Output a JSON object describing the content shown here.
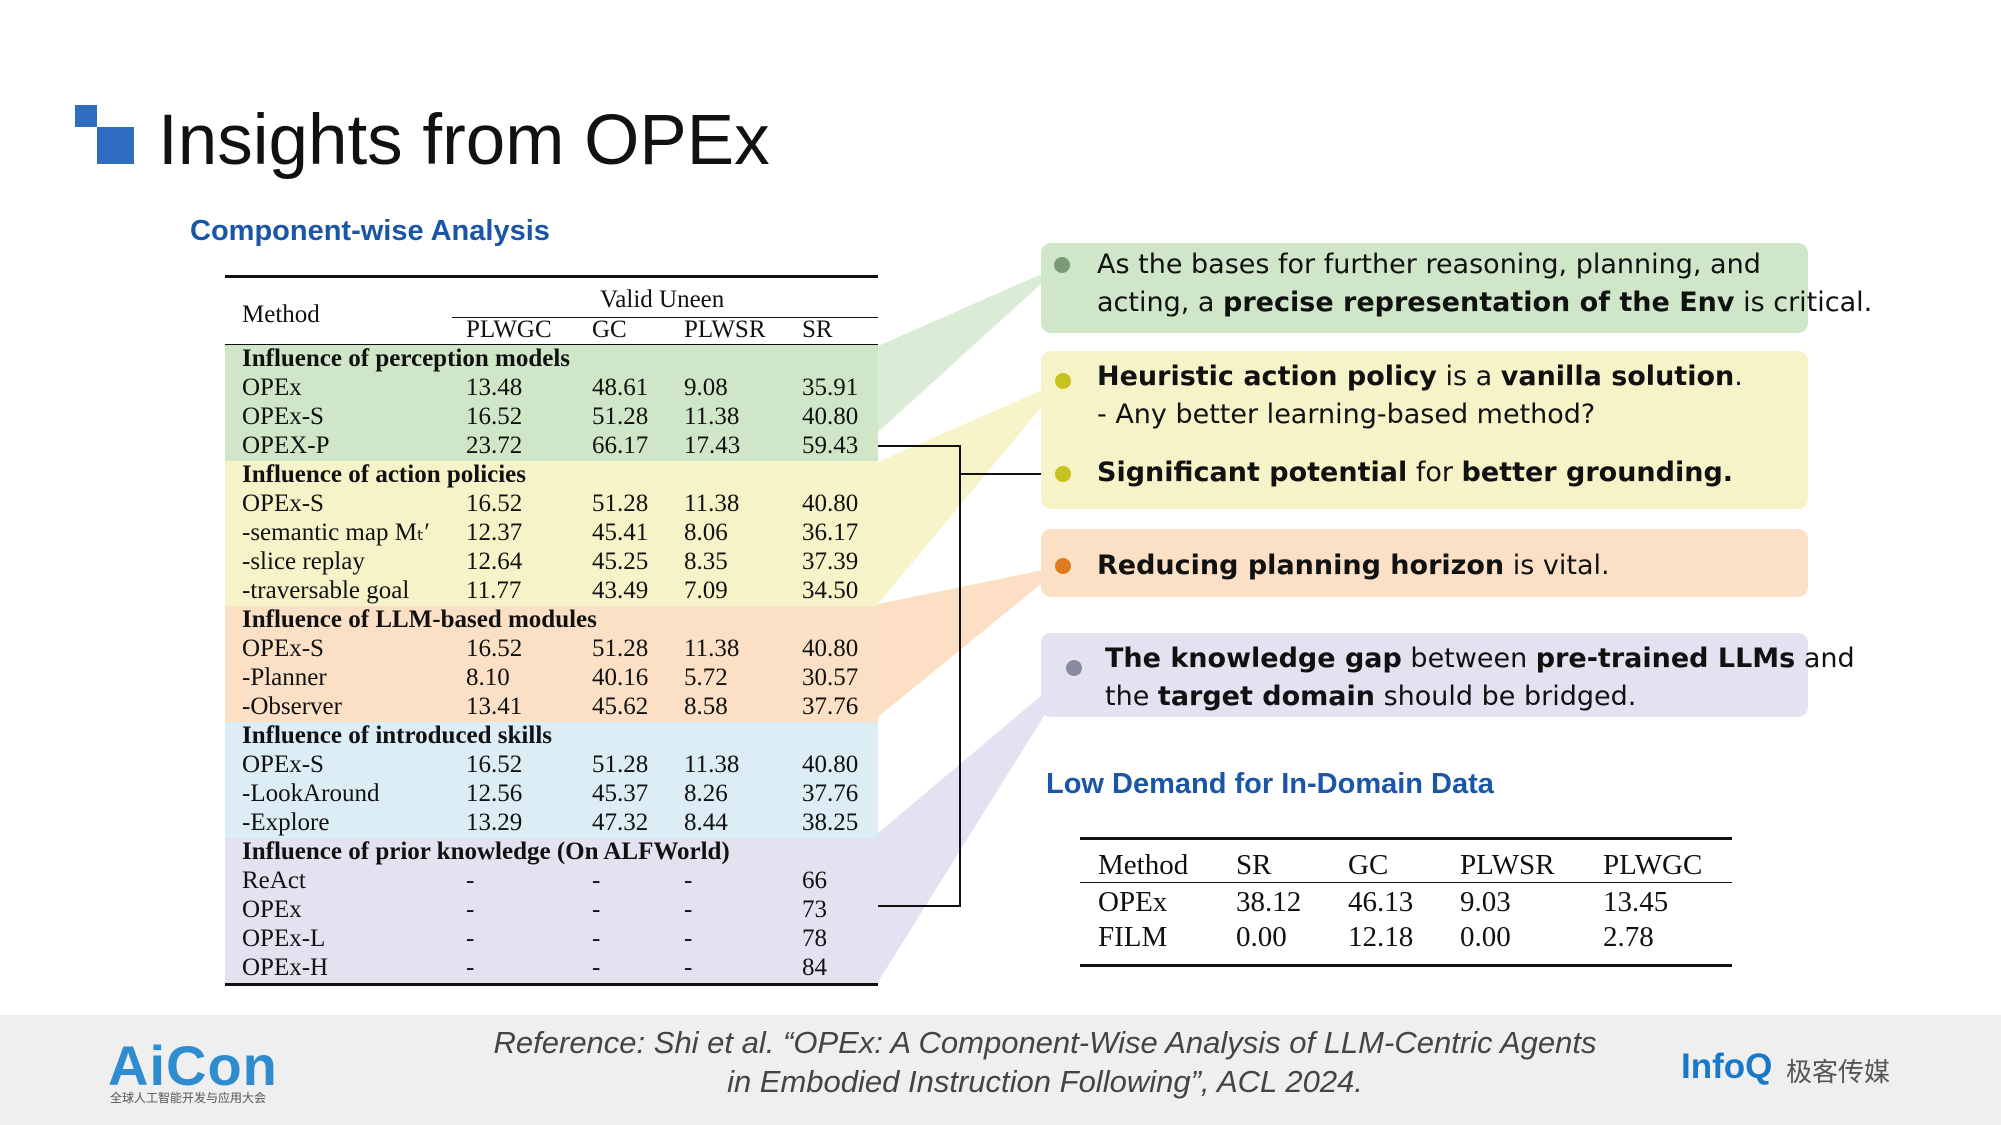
{
  "title": "Insights from OPEx",
  "section_left": "Component-wise Analysis",
  "section_right": "Low Demand for In-Domain Data",
  "main_table": {
    "method_header": "Method",
    "group_header": "Valid Uneen",
    "columns": [
      "PLWGC",
      "GC",
      "PLWSR",
      "SR"
    ],
    "groups": [
      {
        "name": "Influence of perception models",
        "color": "#cfe6c8",
        "rows": [
          [
            "OPEx",
            "13.48",
            "48.61",
            "9.08",
            "35.91"
          ],
          [
            "OPEx-S",
            "16.52",
            "51.28",
            "11.38",
            "40.80"
          ],
          [
            "OPEX-P",
            "23.72",
            "66.17",
            "17.43",
            "59.43"
          ]
        ]
      },
      {
        "name": "Influence of action policies",
        "color": "#f7f3c9",
        "rows": [
          [
            "OPEx-S",
            "16.52",
            "51.28",
            "11.38",
            "40.80"
          ],
          [
            "-semantic map Mₜ′",
            "12.37",
            "45.41",
            "8.06",
            "36.17"
          ],
          [
            "-slice replay",
            "12.64",
            "45.25",
            "8.35",
            "37.39"
          ],
          [
            "-traversable goal",
            "11.77",
            "43.49",
            "7.09",
            "34.50"
          ]
        ]
      },
      {
        "name": "Influence of LLM-based modules",
        "color": "#fbe0c6",
        "rows": [
          [
            "OPEx-S",
            "16.52",
            "51.28",
            "11.38",
            "40.80"
          ],
          [
            "-Planner",
            "8.10",
            "40.16",
            "5.72",
            "30.57"
          ],
          [
            "-Observer",
            "13.41",
            "45.62",
            "8.58",
            "37.76"
          ]
        ]
      },
      {
        "name": "Influence of introduced skills",
        "color": "#dcedf6",
        "rows": [
          [
            "OPEx-S",
            "16.52",
            "51.28",
            "11.38",
            "40.80"
          ],
          [
            "-LookAround",
            "12.56",
            "45.37",
            "8.26",
            "37.76"
          ],
          [
            "-Explore",
            "13.29",
            "47.32",
            "8.44",
            "38.25"
          ]
        ]
      },
      {
        "name": "Influence of prior knowledge (On ALFWorld)",
        "color": "#e2e2f1",
        "rows": [
          [
            "ReAct",
            "-",
            "-",
            "-",
            "66"
          ],
          [
            "OPEx",
            "-",
            "-",
            "-",
            "73"
          ],
          [
            "OPEx-L",
            "-",
            "-",
            "-",
            "78"
          ],
          [
            "OPEx-H",
            "-",
            "-",
            "-",
            "84"
          ]
        ]
      }
    ]
  },
  "callouts": [
    {
      "color": "#cfe6c8",
      "dot": "#7a9a78",
      "lines": [
        [
          [
            "As the bases for further reasoning, planning, and",
            false
          ]
        ],
        [
          [
            "acting, a ",
            false
          ],
          [
            "precise representation of the Env",
            true
          ],
          [
            " is critical.",
            false
          ]
        ]
      ]
    },
    {
      "color": "#f7f3c9",
      "dot": "#c8c21e",
      "lines": [
        [
          [
            "Heuristic action policy",
            true
          ],
          [
            " is a ",
            false
          ],
          [
            "vanilla solution",
            true
          ],
          [
            ".",
            false
          ]
        ],
        [
          [
            "- Any better learning-based method?",
            false
          ]
        ],
        [
          [
            "Significant potential",
            true
          ],
          [
            " for ",
            false
          ],
          [
            "better grounding.",
            true
          ]
        ]
      ]
    },
    {
      "color": "#fbe0c6",
      "dot": "#e07a1e",
      "lines": [
        [
          [
            "Reducing planning horizon",
            true
          ],
          [
            " is vital.",
            false
          ]
        ]
      ]
    },
    {
      "color": "#e2e2f1",
      "dot": "#8a8aa0",
      "lines": [
        [
          [
            "The knowledge gap",
            true
          ],
          [
            " between ",
            false
          ],
          [
            "pre-trained LLMs",
            true
          ],
          [
            " and",
            false
          ]
        ],
        [
          [
            "the ",
            false
          ],
          [
            "target domain",
            true
          ],
          [
            " should be bridged.",
            false
          ]
        ]
      ]
    }
  ],
  "small_table": {
    "columns": [
      "Method",
      "SR",
      "GC",
      "PLWSR",
      "PLWGC"
    ],
    "rows": [
      [
        "OPEx",
        "38.12",
        "46.13",
        "9.03",
        "13.45"
      ],
      [
        "FILM",
        "0.00",
        "12.18",
        "0.00",
        "2.78"
      ]
    ]
  },
  "footer": {
    "reference_line1": "Reference: Shi et al. “OPEx: A Component-Wise Analysis of LLM-Centric Agents",
    "reference_line2": "in Embodied Instruction Following”, ACL 2024.",
    "aicon_logo": "AiCon",
    "aicon_sub": "全球人工智能开发与应用大会",
    "infoq_logo": "InfoQ",
    "infoq_sub": "极客传媒"
  }
}
